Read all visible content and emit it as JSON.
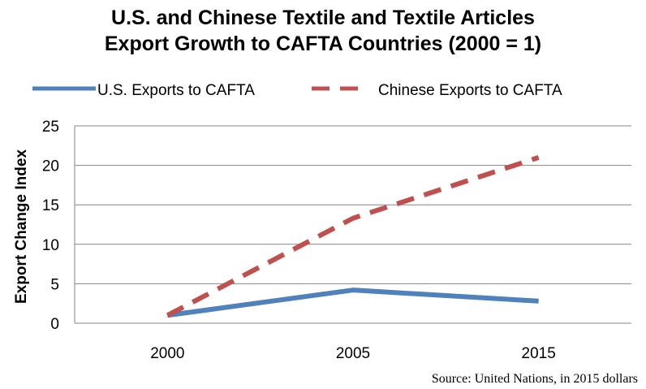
{
  "chart_data": {
    "type": "line",
    "title_lines": [
      "U.S. and Chinese Textile and Textile Articles",
      "Export Growth to CAFTA Countries (2000 = 1)"
    ],
    "xlabel": "",
    "ylabel": "Export Change Index",
    "categories": [
      "2000",
      "2005",
      "2015"
    ],
    "ylim": [
      0,
      25
    ],
    "yticks": [
      0,
      5,
      10,
      15,
      20,
      25
    ],
    "grid": true,
    "legend_position": "top",
    "series": [
      {
        "name": "U.S. Exports to CAFTA",
        "values": [
          1.0,
          4.2,
          2.8
        ],
        "color": "#4f81bd",
        "style": "solid"
      },
      {
        "name": "Chinese Exports to CAFTA",
        "values": [
          1.0,
          13.3,
          21.0
        ],
        "color": "#c0504d",
        "style": "dashed"
      }
    ]
  },
  "source_note": "Source: United Nations, in 2015 dollars"
}
